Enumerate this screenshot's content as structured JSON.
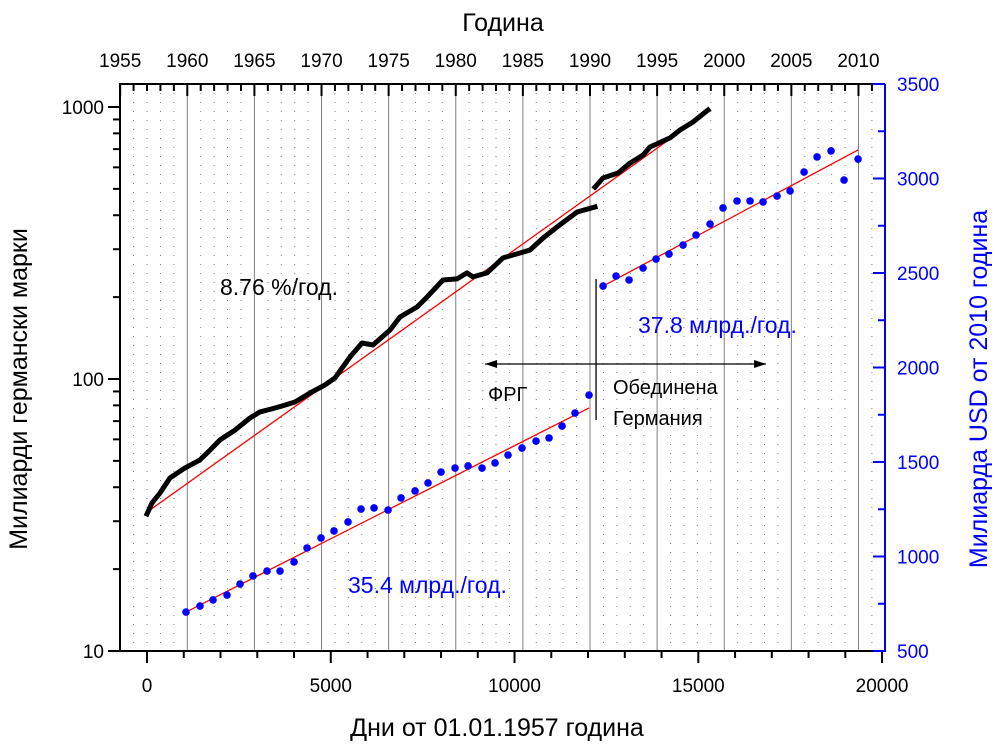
{
  "chart_data": {
    "type": "scatter",
    "title": "",
    "xlabel": "Дни от 01.01.1957 година",
    "xlim": [
      -735,
      20080
    ],
    "xticks": [
      0,
      5000,
      10000,
      15000,
      20000
    ],
    "xtick_labels": [
      "0",
      "5000",
      "10000",
      "15000",
      "20000"
    ],
    "x2label": "Година",
    "x2ticks": [
      1955,
      1960,
      1965,
      1970,
      1975,
      1980,
      1985,
      1990,
      1995,
      2000,
      2005,
      2010
    ],
    "x2tick_labels": [
      "1955",
      "1960",
      "1965",
      "1970",
      "1975",
      "1980",
      "1985",
      "1990",
      "1995",
      "2000",
      "2005",
      "2010"
    ],
    "ylabel": "Милиарди германски марки",
    "ylim": [
      10,
      1000
    ],
    "yscale": "log",
    "yticks": [
      10,
      100,
      1000
    ],
    "ytick_labels": [
      "10",
      "100",
      "1000"
    ],
    "y2label": "Милиарда USD от 2010 година",
    "y2lim": [
      500,
      3500
    ],
    "y2ticks": [
      500,
      1000,
      1500,
      2000,
      2500,
      3000,
      3500
    ],
    "y2tick_labels": [
      "500",
      "1000",
      "1500",
      "2000",
      "2500",
      "3000",
      "3500"
    ],
    "grid": true,
    "series": [
      {
        "name": "GDP Germany (DM, left axis)",
        "axis": "left",
        "style": "line-thick",
        "color": "#000000",
        "segments": [
          {
            "x": [
              0,
              136,
              354,
              626,
              1034,
              1442,
              1714,
              1986,
              2395,
              2803,
              3075,
              3483,
              3755,
              4027,
              4435,
              4844,
              5116,
              5524,
              5850,
              6150,
              6612,
              6884,
              7347,
              7619,
              8054,
              8435,
              8707,
              8871,
              9252,
              9687,
              10150,
              10422,
              10776,
              11156,
              11701,
              12190
            ],
            "y": [
              31.9,
              35.0,
              38.1,
              43.3,
              47.1,
              50.4,
              54.8,
              59.7,
              64.9,
              71.9,
              75.7,
              78.2,
              80.2,
              82.3,
              88.8,
              95.1,
              100.9,
              120.5,
              135.6,
              133.3,
              151.4,
              169.0,
              184.0,
              200.1,
              231.1,
              233.3,
              245.5,
              237.3,
              245.5,
              278.8,
              290.6,
              298.0,
              329.9,
              362.1,
              411.0,
              428.8
            ]
          },
          {
            "x": [
              12190,
              12408,
              12816,
              13143,
              13497,
              13687,
              14231,
              14503,
              14857,
              15265
            ],
            "y": [
              507.7,
              548.1,
              571.8,
              622.0,
              666.2,
              713.0,
              769.7,
              823.0,
              880.5,
              974.8
            ]
          }
        ]
      },
      {
        "name": "GDP Germany (2010 USD, right axis)",
        "axis": "right",
        "style": "dots",
        "color": "#0000ff",
        "x": [
          1061,
          1442,
          1796,
          2177,
          2531,
          2884,
          3265,
          3619,
          4000,
          4354,
          4735,
          5088,
          5469,
          5823,
          6177,
          6558,
          6912,
          7293,
          7646,
          8000,
          8381,
          8735,
          9116,
          9469,
          9823,
          10204,
          10585,
          10939,
          11293,
          11646,
          12027,
          12408,
          12762,
          13116,
          13497,
          13850,
          14204,
          14585,
          14939,
          15320,
          15673,
          16054,
          16408,
          16762,
          17143,
          17497,
          17878,
          18231,
          18612,
          18966,
          19347
        ],
        "y": [
          706,
          738,
          770,
          796,
          854,
          897,
          923,
          923,
          971,
          1045,
          1098,
          1135,
          1183,
          1251,
          1257,
          1246,
          1310,
          1347,
          1389,
          1447,
          1468,
          1479,
          1468,
          1495,
          1537,
          1574,
          1611,
          1627,
          1690,
          1759,
          1854,
          2431,
          2484,
          2463,
          2526,
          2574,
          2600,
          2648,
          2701,
          2759,
          2844,
          2881,
          2881,
          2876,
          2907,
          2934,
          3034,
          3114,
          3146,
          2992,
          3103
        ]
      }
    ],
    "fits": [
      {
        "name": "exp-fit-dm",
        "axis": "left",
        "color": "#ff0000",
        "x": [
          0,
          15292
        ],
        "y": [
          32.4,
          966
        ]
      },
      {
        "name": "linear-fit-frg",
        "axis": "right",
        "color": "#ff0000",
        "x": [
          1061,
          12027
        ],
        "y": [
          706,
          1786
        ]
      },
      {
        "name": "linear-fit-unified",
        "axis": "right",
        "color": "#ff0000",
        "x": [
          12408,
          19347
        ],
        "y": [
          2431,
          3151
        ]
      }
    ],
    "annotations": {
      "rate_dm": "8.76 %/год.",
      "rate_frg": "35.4 млрд./год.",
      "rate_unified": "37.8 млрд./год.",
      "frg": "ФРГ",
      "unified_line1": "Обединена",
      "unified_line2": "Германия",
      "divider_day": 12218,
      "arrow_from_day": 9197,
      "arrow_to_day": 16844
    },
    "colors": {
      "left_axis": "#000000",
      "right_axis": "#0000ff",
      "fit": "#ff0000",
      "major_grid": "#808080",
      "minor_grid": "#808080"
    }
  }
}
